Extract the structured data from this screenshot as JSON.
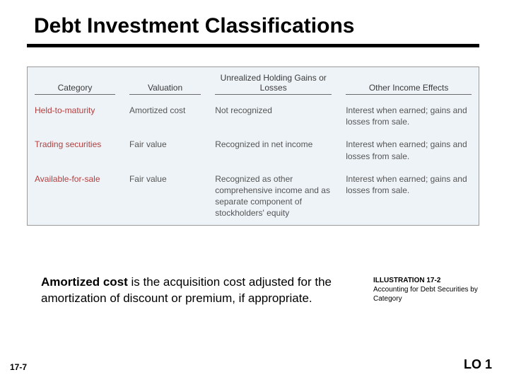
{
  "title": "Debt Investment Classifications",
  "table": {
    "background_color": "#eef3f7",
    "border_color": "#9a9a9a",
    "header_text_color": "#3a3a3a",
    "body_text_color": "#555555",
    "category_text_color": "#b04040",
    "columns": [
      {
        "label": "Category",
        "width_pct": 21
      },
      {
        "label": "Valuation",
        "width_pct": 19
      },
      {
        "label": "Unrealized Holding Gains or Losses",
        "width_pct": 29
      },
      {
        "label": "Other Income Effects",
        "width_pct": 31
      }
    ],
    "rows": [
      {
        "category": "Held-to-maturity",
        "valuation": "Amortized cost",
        "unrealized": "Not recognized",
        "other": "Interest when earned; gains and losses from sale."
      },
      {
        "category": "Trading securities",
        "valuation": "Fair value",
        "unrealized": "Recognized in net income",
        "other": "Interest when earned; gains and losses from sale."
      },
      {
        "category": "Available-for-sale",
        "valuation": "Fair value",
        "unrealized": "Recognized as other comprehensive income and as separate component of stockholders' equity",
        "other": "Interest when earned; gains and losses from sale."
      }
    ]
  },
  "note": {
    "bold": "Amortized cost",
    "rest": " is the acquisition cost adjusted for the amortization of discount or premium, if appropriate."
  },
  "illustration": {
    "heading": "ILLUSTRATION 17-2",
    "caption": "Accounting for Debt Securities by Category"
  },
  "page_number": "17-7",
  "lo": "LO 1",
  "fonts": {
    "title_size_pt": 30,
    "table_size_pt": 12,
    "note_size_pt": 17,
    "illus_size_pt": 10,
    "lo_size_pt": 18
  }
}
